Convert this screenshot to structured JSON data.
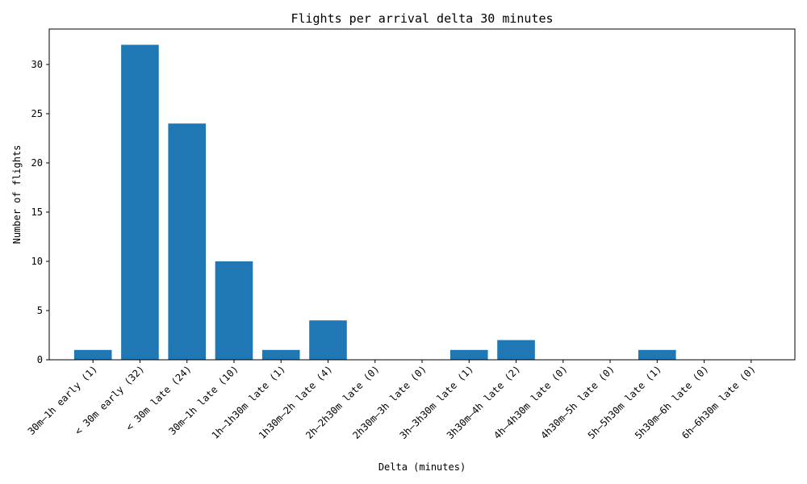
{
  "chart_data": {
    "type": "bar",
    "title": "Flights per arrival delta 30 minutes",
    "xlabel": "Delta (minutes)",
    "ylabel": "Number of flights",
    "categories": [
      "30m–1h early (1)",
      "< 30m early (32)",
      "< 30m late (24)",
      "30m–1h late (10)",
      "1h–1h30m late (1)",
      "1h30m–2h late (4)",
      "2h–2h30m late (0)",
      "2h30m–3h late (0)",
      "3h–3h30m late (1)",
      "3h30m–4h late (2)",
      "4h–4h30m late (0)",
      "4h30m–5h late (0)",
      "5h–5h30m late (1)",
      "5h30m–6h late (0)",
      "6h–6h30m late (0)"
    ],
    "values": [
      1,
      32,
      24,
      10,
      1,
      4,
      0,
      0,
      1,
      2,
      0,
      0,
      1,
      0,
      0
    ],
    "ylim": [
      0,
      33.6
    ],
    "yticks": [
      0,
      5,
      10,
      15,
      20,
      25,
      30
    ],
    "bar_color": "#1f77b4",
    "grid": false,
    "legend": "none"
  }
}
